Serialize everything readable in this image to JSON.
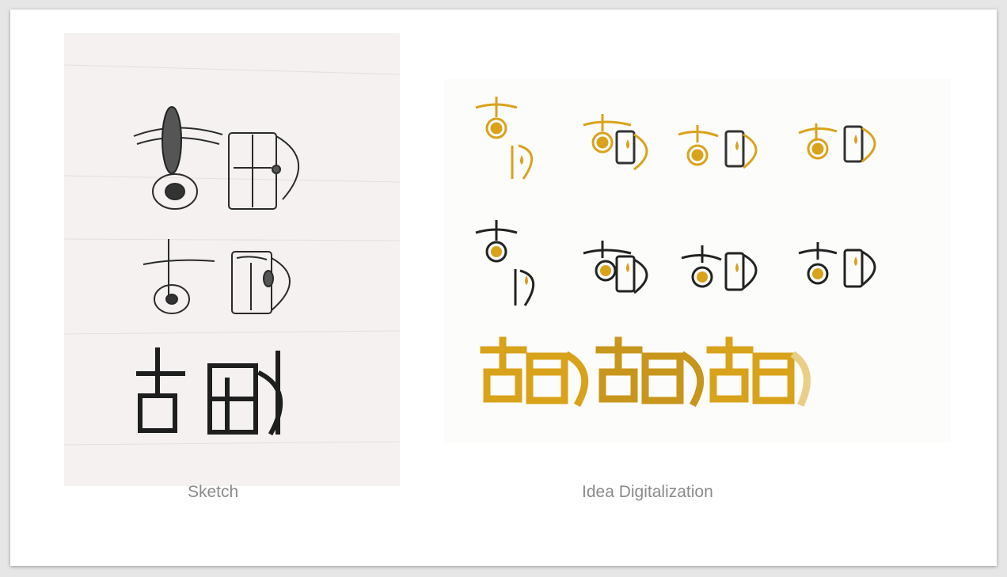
{
  "captions": {
    "sketch": "Sketch",
    "digital": "Idea Digitalization"
  },
  "colors": {
    "gold": "#d9a21b",
    "ink": "#1f1f1f",
    "paper": "#f4f1f0"
  }
}
